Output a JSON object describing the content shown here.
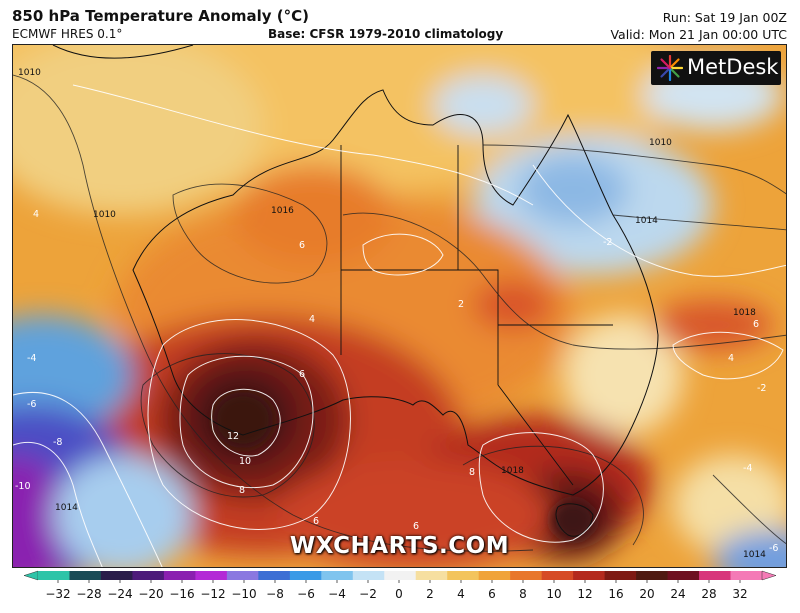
{
  "header": {
    "title": "850 hPa Temperature Anomaly (°C)",
    "model": "ECMWF HRES 0.1°",
    "base": "Base: CFSR 1979-2010 climatology",
    "run": "Run: Sat 19 Jan 00Z",
    "valid": "Valid: Mon 21 Jan 00:00 UTC"
  },
  "logo": {
    "text": "MetDesk",
    "icon": "metdesk-starburst-icon"
  },
  "watermark": "WXCHARTS.COM",
  "map": {
    "region": "Australia",
    "isobar_labels": [
      "1010",
      "1010",
      "1016",
      "1010",
      "1014",
      "1018",
      "1018",
      "1014",
      "1014"
    ],
    "anomaly_labels": [
      "12",
      "10",
      "8",
      "8",
      "6",
      "6",
      "6",
      "6",
      "6",
      "4",
      "4",
      "4",
      "2",
      "-2",
      "-4",
      "-6",
      "-8",
      "-10",
      "-2",
      "-4",
      "-6"
    ]
  },
  "colorbar": {
    "ticks": [
      "-32",
      "-28",
      "-24",
      "-20",
      "-16",
      "-12",
      "-10",
      "-8",
      "-6",
      "-4",
      "-2",
      "0",
      "2",
      "4",
      "6",
      "8",
      "10",
      "12",
      "16",
      "20",
      "24",
      "28",
      "32"
    ],
    "colors": [
      "#2ec4a8",
      "#1b4b57",
      "#2a1d4a",
      "#4d1b7a",
      "#8a20b0",
      "#b32ad6",
      "#8a78e0",
      "#3d6fd4",
      "#3a9ae6",
      "#7fc4ee",
      "#c4e2f5",
      "#f2f2f2",
      "#f6dfa0",
      "#f3c45c",
      "#f0a33a",
      "#e8772c",
      "#d64b26",
      "#b42a1e",
      "#7e1a14",
      "#4f1a12",
      "#6e1020",
      "#d8357b",
      "#f47ab6"
    ]
  }
}
